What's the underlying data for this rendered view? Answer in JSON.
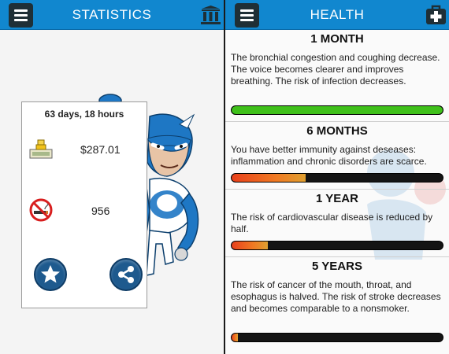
{
  "statistics": {
    "title": "STATISTICS",
    "duration": "63 days, 18 hours",
    "money_saved": "$287.01",
    "cigarettes_avoided": "956",
    "icons": [
      "menu-icon",
      "bar-chart-icon",
      "money-icon",
      "no-smoking-icon",
      "star-icon",
      "share-icon"
    ]
  },
  "health": {
    "title": "HEALTH",
    "icons": [
      "menu-icon",
      "medical-kit-icon"
    ],
    "stages": [
      {
        "title": "1 MONTH",
        "text": "The bronchial congestion and coughing decrease. The voice becomes clearer and improves breathing. The risk of infection decreases.",
        "progress": 1.0
      },
      {
        "title": "6 MONTHS",
        "text": "You have better immunity against deseases: inflammation and chronic disorders are scarce.",
        "progress": 0.35
      },
      {
        "title": "1 YEAR",
        "text": "The risk of cardiovascular disease is reduced by half.",
        "progress": 0.17
      },
      {
        "title": "5 YEARS",
        "text": "The risk of cancer of the mouth, throat, and esophagus is halved. The risk of stroke decreases and becomes comparable to a nonsmoker.",
        "progress": 0.03
      }
    ]
  },
  "colors": {
    "accent": "#1187cf",
    "complete": "#3fc01a",
    "inprogress": "#f07a23",
    "track": "#141414"
  }
}
